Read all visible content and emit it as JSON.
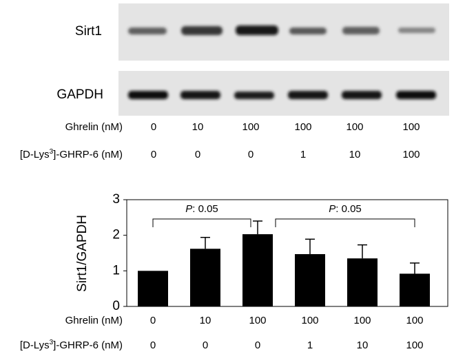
{
  "blot": {
    "proteins": [
      "Sirt1",
      "GAPDH"
    ],
    "condition_rows": [
      {
        "label_parts": [
          "Ghrelin (nM)"
        ],
        "values": [
          "0",
          "10",
          "100",
          "100",
          "100",
          "100"
        ]
      },
      {
        "label_parts": [
          "[D-Lys",
          "3",
          "]-GHRP-6 (nM)"
        ],
        "values": [
          "0",
          "0",
          "0",
          "1",
          "10",
          "100"
        ]
      }
    ]
  },
  "chart_data": {
    "type": "bar",
    "ylabel": "Sirt1/GAPDH",
    "values": [
      1,
      1.62,
      2.03,
      1.47,
      1.35,
      0.92
    ],
    "errors": [
      0,
      0.32,
      0.37,
      0.42,
      0.38,
      0.3
    ],
    "color": "#000000",
    "ylim": [
      0,
      3
    ],
    "yticks": [
      0,
      1,
      2,
      3
    ],
    "category_rows": [
      {
        "label_parts": [
          "Ghrelin (nM)"
        ],
        "values": [
          "0",
          "10",
          "100",
          "100",
          "100",
          "100"
        ]
      },
      {
        "label_parts": [
          "[D-Lys",
          "3",
          "]-GHRP-6 (nM)"
        ],
        "values": [
          "0",
          "0",
          "0",
          "1",
          "10",
          "100"
        ]
      }
    ],
    "annotations": [
      {
        "italic": "P",
        "text": ": 0.05",
        "from": 0,
        "to": 2
      },
      {
        "italic": "P",
        "text": ": 0.05",
        "from": 2,
        "to": 5
      }
    ]
  }
}
